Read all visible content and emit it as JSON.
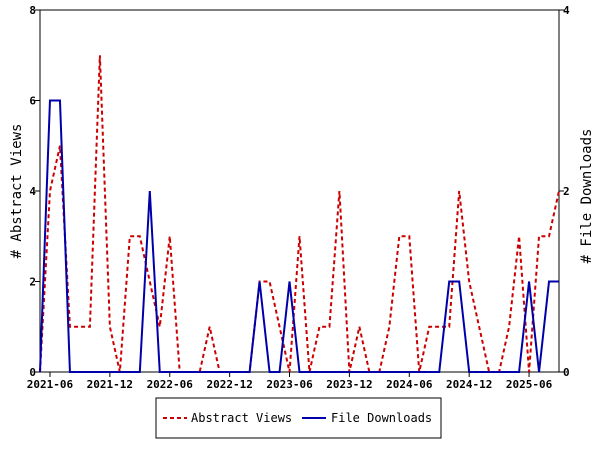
{
  "chart_data": {
    "type": "line",
    "x_ticks": [
      "2021-06",
      "2021-12",
      "2022-06",
      "2022-12",
      "2023-06",
      "2023-12",
      "2024-06",
      "2024-12",
      "2025-06"
    ],
    "x": [
      "2021-05",
      "2021-06",
      "2021-07",
      "2021-08",
      "2021-09",
      "2021-10",
      "2021-11",
      "2021-12",
      "2022-01",
      "2022-02",
      "2022-03",
      "2022-04",
      "2022-05",
      "2022-06",
      "2022-07",
      "2022-08",
      "2022-09",
      "2022-10",
      "2022-11",
      "2022-12",
      "2023-01",
      "2023-02",
      "2023-03",
      "2023-04",
      "2023-05",
      "2023-06",
      "2023-07",
      "2023-08",
      "2023-09",
      "2023-10",
      "2023-11",
      "2023-12",
      "2024-01",
      "2024-02",
      "2024-03",
      "2024-04",
      "2024-05",
      "2024-06",
      "2024-07",
      "2024-08",
      "2024-09",
      "2024-10",
      "2024-11",
      "2024-12",
      "2025-01",
      "2025-02",
      "2025-03",
      "2025-04",
      "2025-05",
      "2025-06",
      "2025-07",
      "2025-08",
      "2025-09"
    ],
    "series": [
      {
        "name": "Abstract Views",
        "axis": "left",
        "color": "#cc0000",
        "style": "dashed",
        "values": [
          0,
          4,
          5,
          1,
          1,
          1,
          7,
          1,
          0,
          3,
          3,
          2,
          1,
          3,
          0,
          0,
          0,
          1,
          0,
          0,
          0,
          0,
          2,
          2,
          1,
          0,
          3,
          0,
          1,
          1,
          4,
          0,
          1,
          0,
          0,
          1,
          3,
          3,
          0,
          1,
          1,
          1,
          4,
          2,
          1,
          0,
          0,
          1,
          3,
          0,
          3,
          3,
          4
        ]
      },
      {
        "name": "File Downloads",
        "axis": "right",
        "color": "#0000aa",
        "style": "solid",
        "values": [
          0,
          3,
          3,
          0,
          0,
          0,
          0,
          0,
          0,
          0,
          0,
          2,
          0,
          0,
          0,
          0,
          0,
          0,
          0,
          0,
          0,
          0,
          1,
          0,
          0,
          1,
          0,
          0,
          0,
          0,
          0,
          0,
          0,
          0,
          0,
          0,
          0,
          0,
          0,
          0,
          0,
          1,
          1,
          0,
          0,
          0,
          0,
          0,
          0,
          1,
          0,
          1,
          1
        ]
      }
    ],
    "ylabel": "# Abstract Views",
    "y2label": "# File Downloads",
    "ylim": [
      0,
      8
    ],
    "y2lim": [
      0,
      4
    ],
    "y_ticks": [
      "0",
      "2",
      "4",
      "6",
      "8"
    ],
    "y2_ticks": [
      "0",
      "2",
      "4"
    ],
    "grid": false,
    "legend": {
      "position": "bottom",
      "entries": [
        "Abstract Views",
        "File Downloads"
      ]
    }
  }
}
